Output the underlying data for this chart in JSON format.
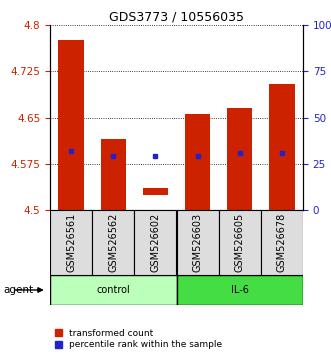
{
  "title": "GDS3773 / 10556035",
  "samples": [
    "GSM526561",
    "GSM526562",
    "GSM526602",
    "GSM526603",
    "GSM526605",
    "GSM526678"
  ],
  "bar_bottoms": [
    4.5,
    4.5,
    4.525,
    4.5,
    4.5,
    4.5
  ],
  "bar_tops": [
    4.775,
    4.615,
    4.535,
    4.655,
    4.665,
    4.705
  ],
  "percentile_values": [
    4.595,
    4.588,
    4.588,
    4.588,
    4.592,
    4.592
  ],
  "ylim": [
    4.5,
    4.8
  ],
  "yticks_left": [
    4.5,
    4.575,
    4.65,
    4.725,
    4.8
  ],
  "yticks_right_labels": [
    "0",
    "25",
    "50",
    "75",
    "100%"
  ],
  "bar_color": "#cc2200",
  "percentile_color": "#2222cc",
  "control_color": "#bbffbb",
  "il6_color": "#44dd44",
  "sample_box_color": "#dddddd",
  "bar_width": 0.6,
  "title_fontsize": 9,
  "tick_fontsize": 7.5,
  "label_fontsize": 7,
  "legend_fontsize": 6.5
}
